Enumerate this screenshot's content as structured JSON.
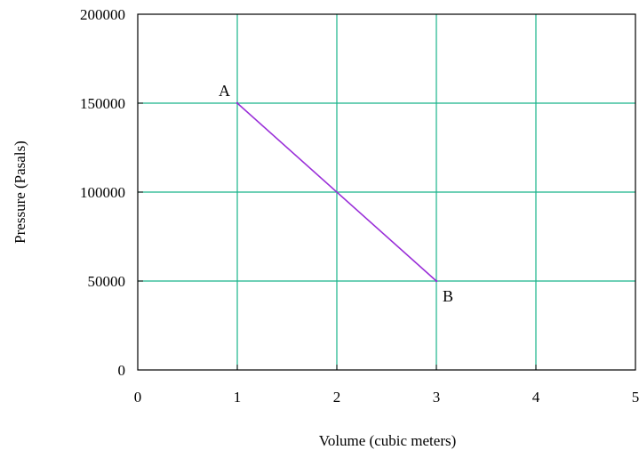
{
  "chart_data": {
    "type": "line",
    "xlabel": "Volume (cubic meters)",
    "ylabel": "Pressure (Pasals)",
    "xlim": [
      0,
      5
    ],
    "ylim": [
      0,
      200000
    ],
    "xticks": [
      "0",
      "1",
      "2",
      "3",
      "4",
      "5"
    ],
    "yticks": [
      "0",
      "50000",
      "100000",
      "150000",
      "200000"
    ],
    "grid": true,
    "series": [
      {
        "x": [
          1,
          3
        ],
        "y": [
          150000,
          50000
        ],
        "color": "#9a2fd8"
      }
    ],
    "annotations": [
      {
        "text": "A",
        "x": 1,
        "y": 150000
      },
      {
        "text": "B",
        "x": 3,
        "y": 50000
      }
    ],
    "grid_color": "#19b38a"
  }
}
